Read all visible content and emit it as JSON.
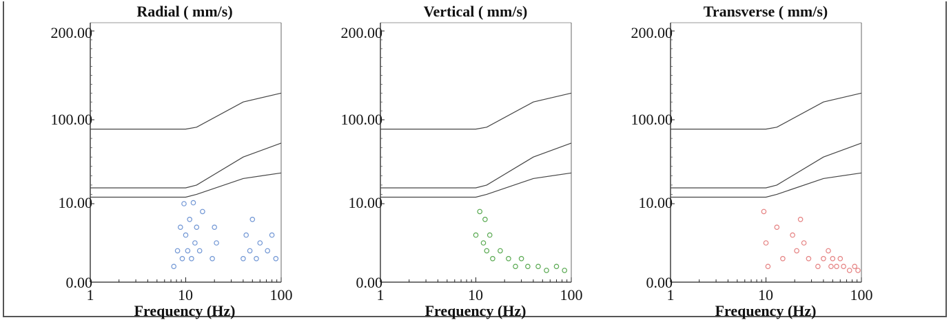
{
  "chart_data": [
    {
      "type": "scatter",
      "title": "Radial ( mm/s)",
      "xlabel": "Frequency (Hz)",
      "ylabel": "",
      "xscale": "log",
      "xlim": [
        1,
        100
      ],
      "ylim": [
        0,
        200
      ],
      "yticks": [
        "0.00",
        "10.00",
        "100.00",
        "200.00"
      ],
      "xticks": [
        "1",
        "10",
        "100"
      ],
      "marker_color": "#6f95d4",
      "limit_curves": [
        {
          "x": [
            1,
            10,
            13,
            40,
            100
          ],
          "y": [
            90,
            90,
            92,
            120,
            130
          ]
        },
        {
          "x": [
            1,
            10,
            13,
            40,
            100
          ],
          "y": [
            27,
            27,
            30,
            60,
            75
          ]
        },
        {
          "x": [
            1,
            10,
            13,
            40,
            100
          ],
          "y": [
            17,
            17,
            20,
            37,
            43
          ]
        }
      ],
      "series": [
        {
          "x": [
            7.5,
            8.2,
            8.8,
            9.2,
            9.6,
            10.0,
            10.5,
            11.0,
            11.5,
            12.0,
            12.5,
            13.0,
            14.0,
            15.0,
            19.0,
            20.0,
            21.0,
            40.0,
            43.0,
            47.0,
            50.0,
            55.0,
            60.0,
            72.0,
            80.0,
            88.0
          ],
          "y": [
            2,
            4,
            7,
            3,
            10,
            6,
            4,
            8,
            3,
            11,
            5,
            7,
            4,
            9,
            3,
            7,
            5,
            3,
            6,
            4,
            8,
            3,
            5,
            4,
            6,
            3
          ]
        }
      ]
    },
    {
      "type": "scatter",
      "title": "Vertical ( mm/s)",
      "xlabel": "Frequency (Hz)",
      "ylabel": "",
      "xscale": "log",
      "xlim": [
        1,
        100
      ],
      "ylim": [
        0,
        200
      ],
      "yticks": [
        "0.00",
        "10.00",
        "100.00",
        "200.00"
      ],
      "xticks": [
        "1",
        "10",
        "100"
      ],
      "marker_color": "#57a84f",
      "limit_curves": [
        {
          "x": [
            1,
            10,
            13,
            40,
            100
          ],
          "y": [
            90,
            90,
            92,
            120,
            130
          ]
        },
        {
          "x": [
            1,
            10,
            13,
            40,
            100
          ],
          "y": [
            27,
            27,
            30,
            60,
            75
          ]
        },
        {
          "x": [
            1,
            10,
            13,
            40,
            100
          ],
          "y": [
            17,
            17,
            20,
            37,
            43
          ]
        }
      ],
      "series": [
        {
          "x": [
            10.0,
            11.0,
            12.0,
            12.5,
            13.0,
            14.0,
            15.0,
            18.0,
            22.0,
            26.0,
            30.0,
            35.0,
            45.0,
            55.0,
            70.0,
            85.0
          ],
          "y": [
            6,
            9,
            5,
            8,
            4,
            6,
            3,
            4,
            3,
            2,
            3,
            2,
            2,
            1.5,
            2,
            1.5
          ]
        }
      ]
    },
    {
      "type": "scatter",
      "title": "Transverse ( mm/s)",
      "xlabel": "Frequency (Hz)",
      "ylabel": "",
      "xscale": "log",
      "xlim": [
        1,
        100
      ],
      "ylim": [
        0,
        200
      ],
      "yticks": [
        "0.00",
        "10.00",
        "100.00",
        "200.00"
      ],
      "xticks": [
        "1",
        "10",
        "100"
      ],
      "marker_color": "#e58080",
      "limit_curves": [
        {
          "x": [
            1,
            10,
            13,
            40,
            100
          ],
          "y": [
            90,
            90,
            92,
            120,
            130
          ]
        },
        {
          "x": [
            1,
            10,
            13,
            40,
            100
          ],
          "y": [
            27,
            27,
            30,
            60,
            75
          ]
        },
        {
          "x": [
            1,
            10,
            13,
            40,
            100
          ],
          "y": [
            17,
            17,
            20,
            37,
            43
          ]
        }
      ],
      "series": [
        {
          "x": [
            9.5,
            10.0,
            10.5,
            13.0,
            15.0,
            19.0,
            21.0,
            23.0,
            25.0,
            28.0,
            35.0,
            40.0,
            45.0,
            48.0,
            50.0,
            55.0,
            60.0,
            65.0,
            75.0,
            85.0,
            92.0
          ],
          "y": [
            9,
            5,
            2,
            7,
            3,
            6,
            4,
            8,
            5,
            3,
            2,
            3,
            4,
            2,
            3,
            2,
            3,
            2,
            1.5,
            2,
            1.5
          ]
        }
      ]
    }
  ]
}
